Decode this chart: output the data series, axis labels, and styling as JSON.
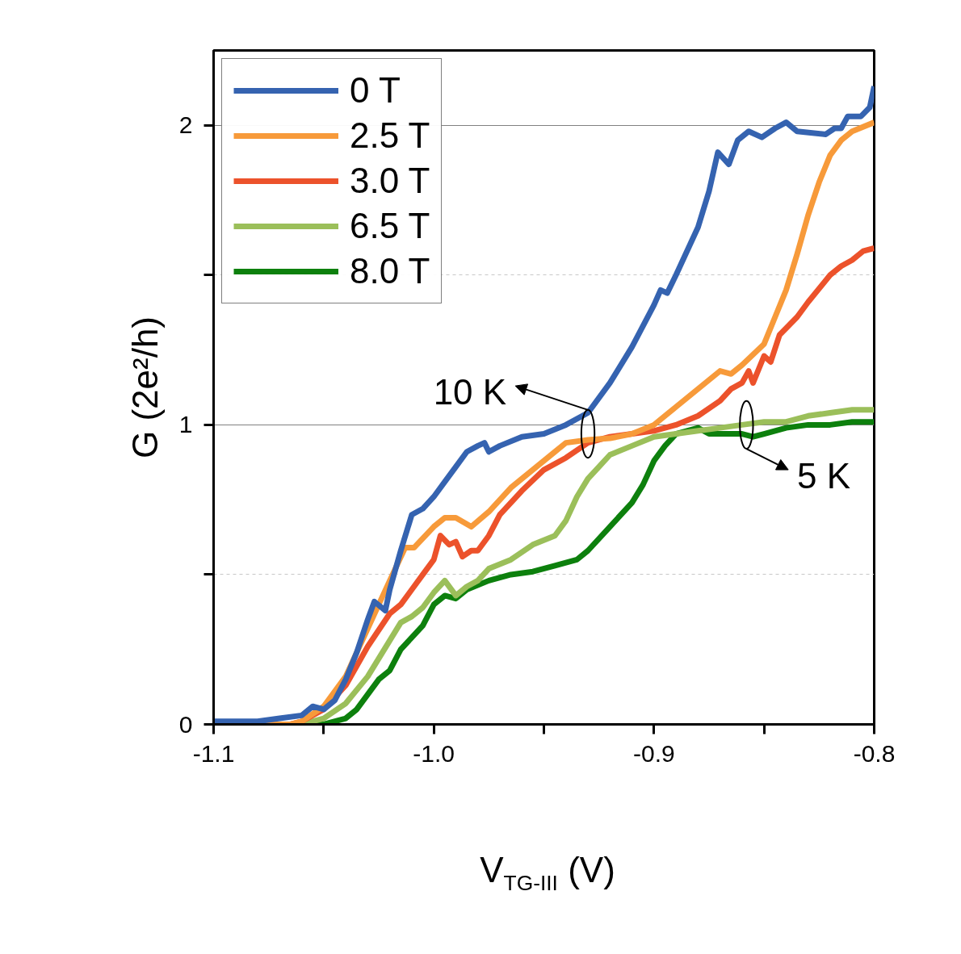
{
  "chart_data": {
    "type": "line",
    "xlabel": "V$_{TG-III}$ (V)",
    "ylabel": "G (2e²/h)",
    "xlim": [
      -1.1,
      -0.8
    ],
    "ylim": [
      0,
      2.25
    ],
    "xticks": [
      -1.1,
      {
        "value": -1.05,
        "label": null
      },
      {
        "value": -1.0,
        "label": "-1.0"
      },
      {
        "value": -0.95,
        "label": null
      },
      -0.9,
      {
        "value": -0.85,
        "label": null
      },
      -0.8
    ],
    "yticks": [
      0,
      {
        "value": 0.5,
        "label": null
      },
      1,
      {
        "value": 1.5,
        "label": null
      },
      2
    ],
    "grid": "y",
    "legend": "top left",
    "marker": "none",
    "line_style": "solid",
    "annotations": [
      {
        "text": "10 K",
        "x": -0.93,
        "y": 0.97
      },
      {
        "text": "5 K",
        "x": -0.858,
        "y": 1.0
      }
    ],
    "series": [
      {
        "name": "0 T",
        "color": "#3563b0",
        "x": [
          -1.1,
          -1.08,
          -1.07,
          -1.06,
          -1.055,
          -1.05,
          -1.045,
          -1.04,
          -1.035,
          -1.03,
          -1.027,
          -1.022,
          -1.02,
          -1.015,
          -1.01,
          -1.005,
          -1.0,
          -0.995,
          -0.99,
          -0.985,
          -0.98,
          -0.977,
          -0.975,
          -0.97,
          -0.96,
          -0.95,
          -0.94,
          -0.93,
          -0.92,
          -0.91,
          -0.9,
          -0.897,
          -0.894,
          -0.89,
          -0.88,
          -0.875,
          -0.871,
          -0.866,
          -0.862,
          -0.857,
          -0.851,
          -0.845,
          -0.84,
          -0.835,
          -0.822,
          -0.818,
          -0.815,
          -0.812,
          -0.806,
          -0.802,
          -0.8
        ],
        "values": [
          0.01,
          0.01,
          0.02,
          0.03,
          0.06,
          0.05,
          0.08,
          0.15,
          0.24,
          0.35,
          0.41,
          0.38,
          0.45,
          0.58,
          0.7,
          0.72,
          0.76,
          0.81,
          0.86,
          0.91,
          0.93,
          0.94,
          0.91,
          0.93,
          0.96,
          0.97,
          1.0,
          1.04,
          1.14,
          1.26,
          1.4,
          1.45,
          1.44,
          1.5,
          1.66,
          1.78,
          1.91,
          1.87,
          1.95,
          1.98,
          1.96,
          1.99,
          2.01,
          1.98,
          1.97,
          1.99,
          1.99,
          2.03,
          2.03,
          2.06,
          2.13
        ]
      },
      {
        "name": "2.5 T",
        "color": "#f79a3a",
        "x": [
          -1.1,
          -1.065,
          -1.06,
          -1.05,
          -1.04,
          -1.03,
          -1.02,
          -1.013,
          -1.009,
          -1.0,
          -0.995,
          -0.99,
          -0.983,
          -0.975,
          -0.965,
          -0.955,
          -0.945,
          -0.94,
          -0.93,
          -0.92,
          -0.91,
          -0.9,
          -0.89,
          -0.88,
          -0.87,
          -0.865,
          -0.86,
          -0.85,
          -0.845,
          -0.84,
          -0.835,
          -0.83,
          -0.825,
          -0.82,
          -0.815,
          -0.81,
          -0.8
        ],
        "values": [
          0,
          0,
          0.01,
          0.06,
          0.16,
          0.32,
          0.48,
          0.59,
          0.59,
          0.66,
          0.69,
          0.69,
          0.66,
          0.71,
          0.79,
          0.85,
          0.91,
          0.94,
          0.95,
          0.955,
          0.97,
          1.0,
          1.06,
          1.12,
          1.18,
          1.17,
          1.2,
          1.27,
          1.36,
          1.45,
          1.57,
          1.7,
          1.81,
          1.9,
          1.95,
          1.98,
          2.01
        ]
      },
      {
        "name": "3.0 T",
        "color": "#ec522b",
        "x": [
          -1.1,
          -1.065,
          -1.06,
          -1.05,
          -1.04,
          -1.03,
          -1.02,
          -1.015,
          -1.01,
          -1.005,
          -1.0,
          -0.997,
          -0.993,
          -0.99,
          -0.987,
          -0.983,
          -0.98,
          -0.975,
          -0.97,
          -0.96,
          -0.95,
          -0.94,
          -0.93,
          -0.92,
          -0.91,
          -0.9,
          -0.89,
          -0.88,
          -0.87,
          -0.865,
          -0.86,
          -0.857,
          -0.855,
          -0.85,
          -0.847,
          -0.843,
          -0.835,
          -0.83,
          -0.82,
          -0.815,
          -0.81,
          -0.805,
          -0.8
        ],
        "values": [
          0,
          0,
          0.01,
          0.05,
          0.13,
          0.26,
          0.37,
          0.4,
          0.45,
          0.5,
          0.55,
          0.63,
          0.6,
          0.61,
          0.56,
          0.58,
          0.58,
          0.63,
          0.7,
          0.78,
          0.85,
          0.89,
          0.94,
          0.96,
          0.97,
          0.98,
          1.0,
          1.03,
          1.08,
          1.12,
          1.14,
          1.18,
          1.14,
          1.23,
          1.21,
          1.3,
          1.36,
          1.41,
          1.5,
          1.53,
          1.55,
          1.58,
          1.59
        ]
      },
      {
        "name": "6.5 T",
        "color": "#9bbf5a",
        "x": [
          -1.1,
          -1.06,
          -1.05,
          -1.04,
          -1.03,
          -1.02,
          -1.015,
          -1.01,
          -1.005,
          -1.0,
          -0.995,
          -0.99,
          -0.985,
          -0.98,
          -0.975,
          -0.965,
          -0.955,
          -0.945,
          -0.94,
          -0.935,
          -0.93,
          -0.925,
          -0.92,
          -0.91,
          -0.9,
          -0.89,
          -0.88,
          -0.87,
          -0.86,
          -0.85,
          -0.84,
          -0.83,
          -0.82,
          -0.81,
          -0.8
        ],
        "values": [
          0,
          0,
          0.02,
          0.07,
          0.16,
          0.28,
          0.34,
          0.36,
          0.39,
          0.44,
          0.48,
          0.43,
          0.46,
          0.48,
          0.52,
          0.55,
          0.6,
          0.63,
          0.68,
          0.76,
          0.82,
          0.86,
          0.9,
          0.93,
          0.96,
          0.97,
          0.98,
          0.99,
          1.0,
          1.01,
          1.01,
          1.03,
          1.04,
          1.05,
          1.05
        ]
      },
      {
        "name": "8.0 T",
        "color": "#0d800d",
        "x": [
          -1.1,
          -1.05,
          -1.04,
          -1.035,
          -1.03,
          -1.025,
          -1.02,
          -1.015,
          -1.01,
          -1.005,
          -1.0,
          -0.995,
          -0.99,
          -0.985,
          -0.975,
          -0.965,
          -0.955,
          -0.945,
          -0.935,
          -0.93,
          -0.92,
          -0.91,
          -0.905,
          -0.9,
          -0.895,
          -0.89,
          -0.88,
          -0.875,
          -0.87,
          -0.86,
          -0.855,
          -0.85,
          -0.84,
          -0.83,
          -0.82,
          -0.81,
          -0.8
        ],
        "values": [
          0,
          0,
          0.02,
          0.05,
          0.1,
          0.15,
          0.18,
          0.25,
          0.29,
          0.33,
          0.4,
          0.43,
          0.42,
          0.45,
          0.48,
          0.5,
          0.51,
          0.53,
          0.55,
          0.58,
          0.66,
          0.74,
          0.8,
          0.88,
          0.93,
          0.97,
          0.99,
          0.97,
          0.97,
          0.97,
          0.96,
          0.97,
          0.99,
          1.0,
          1.0,
          1.01,
          1.01
        ]
      }
    ]
  }
}
